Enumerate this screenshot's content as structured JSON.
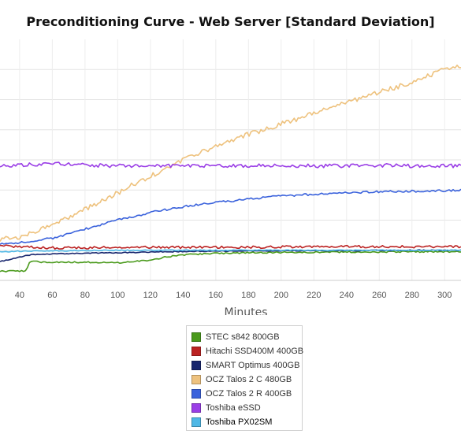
{
  "chart_data": {
    "type": "line",
    "title": "Preconditioning Curve - Web Server [Standard Deviation]",
    "xlabel": "Minutes",
    "ylabel": "",
    "xlim": [
      28,
      310
    ],
    "ylim": [
      0,
      8
    ],
    "x_ticks": [
      40,
      60,
      80,
      100,
      120,
      140,
      160,
      180,
      200,
      220,
      240,
      260,
      280,
      300
    ],
    "y_gridlines": [
      1,
      2,
      3,
      4,
      5,
      6,
      7
    ],
    "grid": true,
    "legend_position": "bottom",
    "series": [
      {
        "name": "STEC s842 800GB",
        "color": "#4a9a1c",
        "x": [
          28,
          44,
          46,
          48,
          60,
          80,
          100,
          110,
          120,
          130,
          140,
          150,
          160,
          180,
          200,
          220,
          240,
          260,
          280,
          300,
          310
        ],
        "y": [
          0.3,
          0.32,
          0.6,
          0.62,
          0.6,
          0.6,
          0.58,
          0.62,
          0.68,
          0.78,
          0.84,
          0.88,
          0.9,
          0.92,
          0.93,
          0.93,
          0.94,
          0.94,
          0.95,
          0.95,
          0.95
        ]
      },
      {
        "name": "Hitachi SSD400M 400GB",
        "color": "#bb2222",
        "x": [
          28,
          40,
          60,
          80,
          100,
          140,
          180,
          220,
          260,
          310
        ],
        "y": [
          1.15,
          1.12,
          1.08,
          1.08,
          1.1,
          1.1,
          1.1,
          1.12,
          1.12,
          1.12
        ]
      },
      {
        "name": "SMART Optimus 400GB",
        "color": "#18266e",
        "x": [
          28,
          36,
          44,
          48,
          60,
          80,
          100,
          120,
          140,
          160,
          180,
          200,
          240,
          280,
          310
        ],
        "y": [
          0.62,
          0.72,
          0.82,
          0.86,
          0.88,
          0.9,
          0.92,
          0.94,
          0.96,
          0.97,
          0.98,
          0.98,
          0.99,
          1.0,
          1.0
        ]
      },
      {
        "name": "OCZ Talos 2 C 480GB",
        "color": "#eec27e",
        "x": [
          28,
          40,
          50,
          60,
          70,
          80,
          90,
          100,
          110,
          120,
          130,
          140,
          150,
          160,
          170,
          180,
          190,
          200,
          210,
          220,
          230,
          240,
          250,
          260,
          270,
          280,
          290,
          300,
          310
        ],
        "y": [
          1.35,
          1.45,
          1.65,
          1.85,
          2.1,
          2.35,
          2.65,
          2.9,
          3.2,
          3.45,
          3.75,
          4.0,
          4.25,
          4.45,
          4.65,
          4.85,
          5.0,
          5.2,
          5.35,
          5.55,
          5.7,
          5.9,
          6.05,
          6.25,
          6.4,
          6.6,
          6.8,
          7.0,
          7.1
        ]
      },
      {
        "name": "OCZ Talos 2 R 400GB",
        "color": "#3a62dc",
        "x": [
          28,
          40,
          60,
          80,
          100,
          120,
          140,
          160,
          180,
          200,
          220,
          240,
          260,
          280,
          300,
          310
        ],
        "y": [
          1.22,
          1.25,
          1.4,
          1.7,
          2.0,
          2.25,
          2.45,
          2.58,
          2.7,
          2.8,
          2.86,
          2.9,
          2.94,
          2.96,
          2.98,
          3.0
        ]
      },
      {
        "name": "Toshiba eSSD",
        "color": "#9a3ee6",
        "x": [
          28,
          40,
          60,
          80,
          100,
          120,
          140,
          160,
          180,
          200,
          220,
          240,
          260,
          280,
          300,
          310
        ],
        "y": [
          3.8,
          3.82,
          3.88,
          3.82,
          3.8,
          3.8,
          3.82,
          3.8,
          3.8,
          3.82,
          3.8,
          3.8,
          3.82,
          3.8,
          3.8,
          3.8
        ]
      },
      {
        "name": "Toshiba PX02SM",
        "color": "#4fb8e6",
        "x": [
          28,
          40,
          60,
          80,
          100,
          120,
          140,
          160,
          180,
          200,
          240,
          280,
          310
        ],
        "y": [
          0.95,
          0.97,
          0.98,
          0.99,
          1.0,
          1.0,
          1.0,
          1.0,
          1.0,
          1.0,
          1.0,
          1.0,
          1.0
        ]
      }
    ]
  }
}
